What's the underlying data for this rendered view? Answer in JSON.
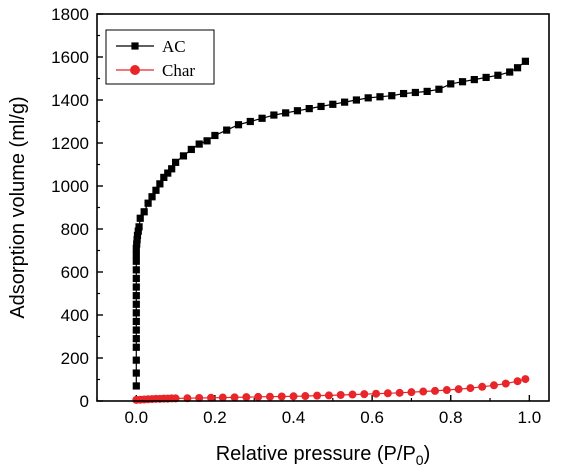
{
  "chart_data": {
    "type": "scatter",
    "xlabel_prefix": "Relative pressure (P/P",
    "xlabel_sub": "0",
    "xlabel_suffix": ")",
    "ylabel": "Adsorption volume (ml/g)",
    "xlim": [
      -0.1,
      1.05
    ],
    "ylim": [
      0,
      1800
    ],
    "xticks": [
      "0.0",
      "0.2",
      "0.4",
      "0.6",
      "0.8",
      "1.0"
    ],
    "yticks": [
      "0",
      "200",
      "400",
      "600",
      "800",
      "1000",
      "1200",
      "1400",
      "1600",
      "1800"
    ],
    "legend_position": "top-left",
    "series": [
      {
        "name": "AC",
        "marker": "square",
        "color": "#000000",
        "x": [
          0.0,
          0.0,
          0.0,
          0.0,
          0.0,
          0.0,
          0.0,
          0.0,
          0.0,
          0.0,
          0.0,
          0.0,
          0.0,
          0.0,
          0.0,
          0.0,
          0.001,
          0.002,
          0.003,
          0.005,
          0.007,
          0.01,
          0.02,
          0.03,
          0.04,
          0.05,
          0.06,
          0.07,
          0.08,
          0.09,
          0.1,
          0.12,
          0.14,
          0.16,
          0.18,
          0.2,
          0.23,
          0.26,
          0.29,
          0.32,
          0.35,
          0.38,
          0.41,
          0.44,
          0.47,
          0.5,
          0.53,
          0.56,
          0.59,
          0.62,
          0.65,
          0.68,
          0.71,
          0.74,
          0.77,
          0.8,
          0.83,
          0.86,
          0.89,
          0.92,
          0.95,
          0.97,
          0.99
        ],
        "y": [
          70,
          130,
          190,
          250,
          290,
          330,
          370,
          410,
          450,
          490,
          530,
          570,
          610,
          650,
          680,
          710,
          730,
          750,
          770,
          790,
          810,
          850,
          880,
          920,
          950,
          980,
          1010,
          1040,
          1060,
          1080,
          1110,
          1140,
          1170,
          1195,
          1210,
          1235,
          1260,
          1285,
          1300,
          1315,
          1330,
          1340,
          1350,
          1360,
          1370,
          1380,
          1390,
          1400,
          1410,
          1415,
          1420,
          1430,
          1435,
          1440,
          1450,
          1475,
          1485,
          1495,
          1505,
          1515,
          1530,
          1550,
          1580
        ]
      },
      {
        "name": "Char",
        "marker": "circle",
        "color": "#e8262a",
        "x": [
          0.0,
          0.01,
          0.02,
          0.03,
          0.04,
          0.05,
          0.06,
          0.07,
          0.08,
          0.09,
          0.1,
          0.13,
          0.16,
          0.19,
          0.22,
          0.25,
          0.28,
          0.31,
          0.34,
          0.37,
          0.4,
          0.43,
          0.46,
          0.49,
          0.52,
          0.55,
          0.58,
          0.61,
          0.64,
          0.67,
          0.7,
          0.73,
          0.76,
          0.79,
          0.82,
          0.85,
          0.88,
          0.91,
          0.94,
          0.97,
          0.99
        ],
        "y": [
          5,
          6,
          7,
          8,
          9,
          10,
          10,
          11,
          11,
          12,
          12,
          13,
          14,
          15,
          16,
          17,
          18,
          19,
          20,
          21,
          22,
          23,
          25,
          26,
          28,
          30,
          32,
          34,
          36,
          38,
          41,
          44,
          47,
          51,
          55,
          60,
          66,
          73,
          81,
          92,
          102
        ]
      }
    ]
  }
}
